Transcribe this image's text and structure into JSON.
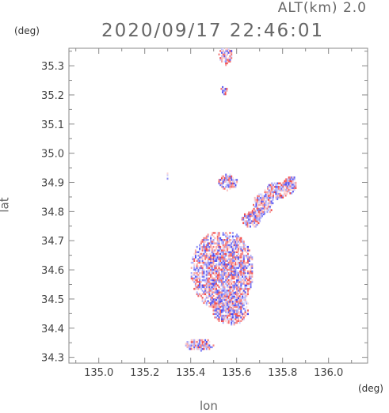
{
  "header": {
    "alt_label": "ALT(km) 2.0",
    "timestamp": "2020/09/17 22:46:01"
  },
  "chart_data": {
    "type": "heatmap",
    "xlabel": "lon",
    "ylabel": "lat",
    "x_unit": "(deg)",
    "y_unit": "(deg)",
    "xlim": [
      134.87,
      136.17
    ],
    "ylim": [
      34.28,
      35.36
    ],
    "x_ticks": [
      135.0,
      135.2,
      135.4,
      135.6,
      135.8,
      136.0
    ],
    "x_tick_labels": [
      "135.0",
      "135.2",
      "135.4",
      "135.6",
      "135.8",
      "136.0"
    ],
    "y_ticks": [
      34.3,
      34.4,
      34.5,
      34.6,
      34.7,
      34.8,
      34.9,
      35.0,
      35.1,
      35.2,
      35.3
    ],
    "y_tick_labels": [
      "34.3",
      "34.4",
      "34.5",
      "34.6",
      "34.7",
      "34.8",
      "34.9",
      "35.0",
      "35.1",
      "35.2",
      "35.3"
    ],
    "colors": {
      "positive": "#f03c3c",
      "negative": "#3c3cf0"
    },
    "regions": [
      {
        "lon": [
          135.4,
          135.67
        ],
        "lat": [
          34.46,
          34.73
        ]
      },
      {
        "lon": [
          135.49,
          135.65
        ],
        "lat": [
          34.41,
          34.52
        ]
      },
      {
        "lon": [
          135.62,
          135.7
        ],
        "lat": [
          34.74,
          34.8
        ]
      },
      {
        "lon": [
          135.66,
          135.72
        ],
        "lat": [
          34.77,
          34.81
        ]
      },
      {
        "lon": [
          135.72,
          135.82
        ],
        "lat": [
          34.84,
          34.9
        ]
      },
      {
        "lon": [
          135.8,
          135.86
        ],
        "lat": [
          34.86,
          34.92
        ]
      },
      {
        "lon": [
          135.53,
          135.56
        ],
        "lat": [
          35.2,
          35.23
        ]
      },
      {
        "lon": [
          135.52,
          135.58
        ],
        "lat": [
          35.3,
          35.36
        ]
      },
      {
        "lon": [
          135.37,
          135.5
        ],
        "lat": [
          34.32,
          34.36
        ]
      },
      {
        "lon": [
          135.52,
          135.6
        ],
        "lat": [
          34.87,
          34.93
        ]
      },
      {
        "lon": [
          135.67,
          135.76
        ],
        "lat": [
          34.79,
          34.86
        ]
      },
      {
        "lon": [
          135.29,
          135.3
        ],
        "lat": [
          34.91,
          34.93
        ]
      }
    ]
  }
}
